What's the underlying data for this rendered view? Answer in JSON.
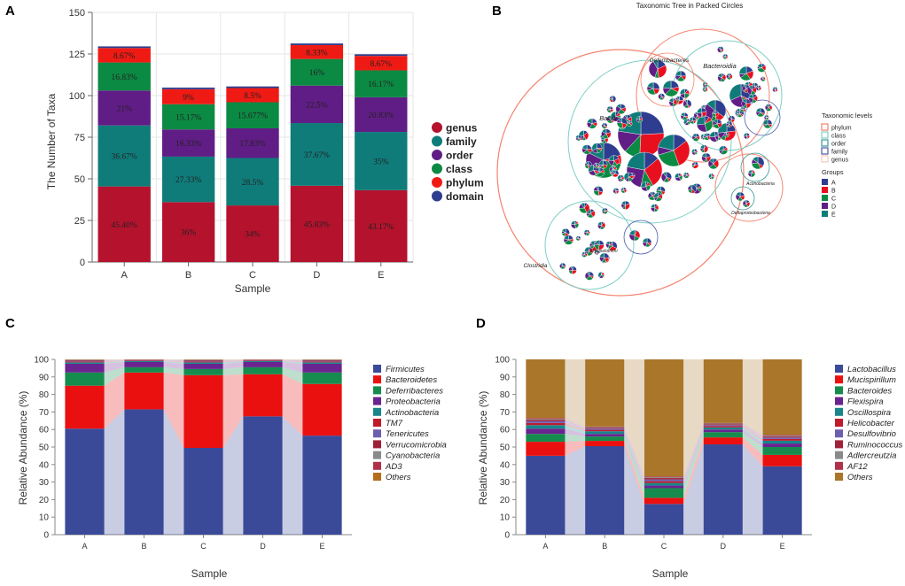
{
  "chart_data": [
    {
      "panel": "A",
      "type": "bar",
      "stacked": true,
      "xlabel": "Sample",
      "ylabel": "The Number of Taxa",
      "ylim": [
        0,
        150
      ],
      "yticks": [
        0,
        25,
        50,
        75,
        100,
        125,
        150
      ],
      "categories": [
        "A",
        "B",
        "C",
        "D",
        "E"
      ],
      "series": [
        {
          "name": "genus",
          "color": "#b5122d",
          "values": [
            45.4,
            36,
            34,
            45.83,
            43.17
          ],
          "labels": [
            "45.40%",
            "36%",
            "34%",
            "45.83%",
            "43.17%"
          ]
        },
        {
          "name": "family",
          "color": "#0f7c7a",
          "values": [
            36.67,
            27.33,
            28.5,
            37.67,
            35
          ],
          "labels": [
            "36.67%",
            "27.33%",
            "28.5%",
            "37.67%",
            "35%"
          ]
        },
        {
          "name": "order",
          "color": "#611d86",
          "values": [
            21,
            16.33,
            17.83,
            22.5,
            20.83
          ],
          "labels": [
            "21%",
            "16.33%",
            "17.83%",
            "22.5%",
            "20.83%"
          ]
        },
        {
          "name": "class",
          "color": "#0b8a43",
          "values": [
            16.83,
            15.17,
            15.677,
            16,
            16.17
          ],
          "labels": [
            "16.83%",
            "15.17%",
            "15.677%",
            "16%",
            "16.17%"
          ]
        },
        {
          "name": "phylum",
          "color": "#f01a14",
          "values": [
            8.67,
            9,
            8.5,
            8.33,
            8.67
          ],
          "labels": [
            "8.67%",
            "9%",
            "8.5%",
            "8.33%",
            "8.67%"
          ]
        },
        {
          "name": "domain",
          "color": "#2e3d8f",
          "values": [
            1,
            1,
            1,
            1,
            1
          ],
          "labels": [
            "",
            "",
            "",
            "",
            ""
          ]
        }
      ],
      "legend": [
        "genus",
        "family",
        "order",
        "class",
        "phylum",
        "domain"
      ]
    },
    {
      "panel": "B",
      "type": "other",
      "title": "Taxonomic Tree in Packed Circles",
      "node_labels": [
        "Deferribacteres",
        "Bacteroidia",
        "Bacilli",
        "Clostridia",
        "Erysipelotrichi",
        "Actinobacteria",
        "Deltaproteobacteria"
      ],
      "legend_levels_title": "Taxonomic levels",
      "legend_levels": [
        {
          "name": "phylum",
          "color": "#f4836e"
        },
        {
          "name": "class",
          "color": "#7fcfc6"
        },
        {
          "name": "order",
          "color": "#3a9a96"
        },
        {
          "name": "family",
          "color": "#4a5aa8"
        },
        {
          "name": "genus",
          "color": "#f6c9bd"
        }
      ],
      "legend_groups_title": "Groups",
      "legend_groups": [
        {
          "name": "A",
          "color": "#2e3d8f"
        },
        {
          "name": "B",
          "color": "#e8101f"
        },
        {
          "name": "C",
          "color": "#0b8a43"
        },
        {
          "name": "D",
          "color": "#611d86"
        },
        {
          "name": "E",
          "color": "#0f7c7a"
        }
      ]
    },
    {
      "panel": "C",
      "type": "bar",
      "stacked": true,
      "xlabel": "Sample",
      "ylabel": "Relative Abundance (%)",
      "ylim": [
        0,
        100
      ],
      "yticks": [
        0,
        10,
        20,
        30,
        40,
        50,
        60,
        70,
        80,
        90,
        100
      ],
      "categories": [
        "A",
        "B",
        "C",
        "D",
        "E"
      ],
      "series": [
        {
          "name": "Firmicutes",
          "color": "#3a4a99",
          "values": [
            60.5,
            71.5,
            49.5,
            67.5,
            56.5
          ]
        },
        {
          "name": "Bacteroidetes",
          "color": "#ea1010",
          "values": [
            24.5,
            21,
            41.5,
            24,
            29.5
          ]
        },
        {
          "name": "Deferribacteres",
          "color": "#158c4d",
          "values": [
            7.5,
            3,
            3.5,
            4,
            6.5
          ]
        },
        {
          "name": "Proteobacteria",
          "color": "#6a2490",
          "values": [
            5,
            3,
            3,
            3,
            5
          ]
        },
        {
          "name": "Actinobacteria",
          "color": "#18868a",
          "values": [
            0.8,
            0.5,
            0.8,
            0.5,
            0.8
          ]
        },
        {
          "name": "TM7",
          "color": "#c01a2b",
          "values": [
            0.5,
            0.3,
            0.5,
            0.3,
            0.5
          ]
        },
        {
          "name": "Tenericutes",
          "color": "#6c5fb0",
          "values": [
            0.4,
            0.2,
            0.4,
            0.2,
            0.4
          ]
        },
        {
          "name": "Verrucomicrobia",
          "color": "#a0203a",
          "values": [
            0.3,
            0.2,
            0.3,
            0.2,
            0.3
          ]
        },
        {
          "name": "Cyanobacteria",
          "color": "#8a8a8a",
          "values": [
            0.2,
            0.1,
            0.2,
            0.1,
            0.2
          ]
        },
        {
          "name": "AD3",
          "color": "#b0304a",
          "values": [
            0.1,
            0.1,
            0.1,
            0.1,
            0.1
          ]
        },
        {
          "name": "Others",
          "color": "#b26e1b",
          "values": [
            0.2,
            0.1,
            0.2,
            0.1,
            0.2
          ]
        }
      ],
      "legend": [
        "Firmicutes",
        "Bacteroidetes",
        "Deferribacteres",
        "Proteobacteria",
        "Actinobacteria",
        "TM7",
        "Tenericutes",
        "Verrucomicrobia",
        "Cyanobacteria",
        "AD3",
        "Others"
      ]
    },
    {
      "panel": "D",
      "type": "bar",
      "stacked": true,
      "xlabel": "Sample",
      "ylabel": "Relative Abundance (%)",
      "ylim": [
        0,
        100
      ],
      "yticks": [
        0,
        10,
        20,
        30,
        40,
        50,
        60,
        70,
        80,
        90,
        100
      ],
      "categories": [
        "A",
        "B",
        "C",
        "D",
        "E"
      ],
      "series": [
        {
          "name": "Lactobacillus",
          "color": "#3a4a99",
          "values": [
            45,
            50.5,
            17.5,
            51.5,
            39
          ]
        },
        {
          "name": "Mucispirillum",
          "color": "#ea1010",
          "values": [
            8,
            3,
            3.5,
            4,
            6.5
          ]
        },
        {
          "name": "Bacteroides",
          "color": "#158c4d",
          "values": [
            4.5,
            2.5,
            5.5,
            3,
            4.5
          ]
        },
        {
          "name": "Flexispira",
          "color": "#6a2490",
          "values": [
            3,
            1.5,
            1.5,
            1.5,
            2
          ]
        },
        {
          "name": "Oscillospira",
          "color": "#18868a",
          "values": [
            2,
            1.5,
            1.5,
            1.2,
            1.6
          ]
        },
        {
          "name": "Helicobacter",
          "color": "#c01a2b",
          "values": [
            1.2,
            0.8,
            1,
            0.7,
            1
          ]
        },
        {
          "name": "Desulfovibrio",
          "color": "#6c5fb0",
          "values": [
            1,
            0.7,
            1,
            0.6,
            0.8
          ]
        },
        {
          "name": "Ruminococcus",
          "color": "#a0203a",
          "values": [
            0.7,
            0.5,
            0.8,
            0.5,
            0.6
          ]
        },
        {
          "name": "Adlercreutzia",
          "color": "#8a8a8a",
          "values": [
            0.6,
            0.4,
            0.5,
            0.4,
            0.5
          ]
        },
        {
          "name": "AF12",
          "color": "#b0304a",
          "values": [
            0.5,
            0.3,
            0.4,
            0.3,
            0.4
          ]
        },
        {
          "name": "Others",
          "color": "#a9762a",
          "values": [
            33.5,
            38.3,
            66.8,
            36.3,
            43.1
          ]
        }
      ],
      "legend": [
        "Lactobacillus",
        "Mucispirillum",
        "Bacteroides",
        "Flexispira",
        "Oscillospira",
        "Helicobacter",
        "Desulfovibrio",
        "Ruminococcus",
        "Adlercreutzia",
        "AF12",
        "Others"
      ]
    }
  ]
}
